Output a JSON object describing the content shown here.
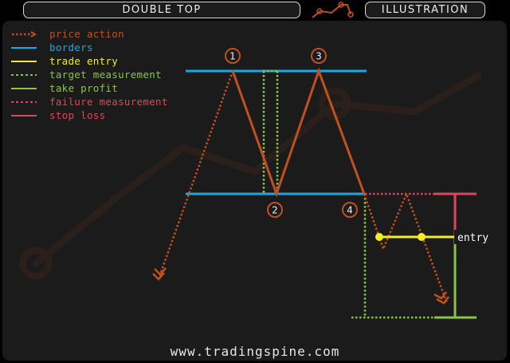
{
  "header": {
    "title": "DOUBLE TOP",
    "tag": "ILLUSTRATION"
  },
  "legend": [
    {
      "label": "price action",
      "color": "#c0501f",
      "style": "dotted-arrow"
    },
    {
      "label": "borders",
      "color": "#17a9e1",
      "style": "solid"
    },
    {
      "label": "trade entry",
      "color": "#f2ef1e",
      "style": "solid"
    },
    {
      "label": "target measurement",
      "color": "#8bc34a",
      "style": "dotted"
    },
    {
      "label": "take profit",
      "color": "#8bc34a",
      "style": "solid"
    },
    {
      "label": "failure measurement",
      "color": "#e0455a",
      "style": "dotted"
    },
    {
      "label": "stop loss",
      "color": "#e0455a",
      "style": "solid"
    }
  ],
  "points": {
    "p1": "1",
    "p2": "2",
    "p3": "3",
    "p4": "4"
  },
  "entry_label": "entry",
  "footer": "www.tradingspine.com",
  "colors": {
    "price": "#c0501f",
    "border": "#17a9e1",
    "entry": "#f2ef1e",
    "target": "#8bc34a",
    "failure": "#e0455a"
  }
}
